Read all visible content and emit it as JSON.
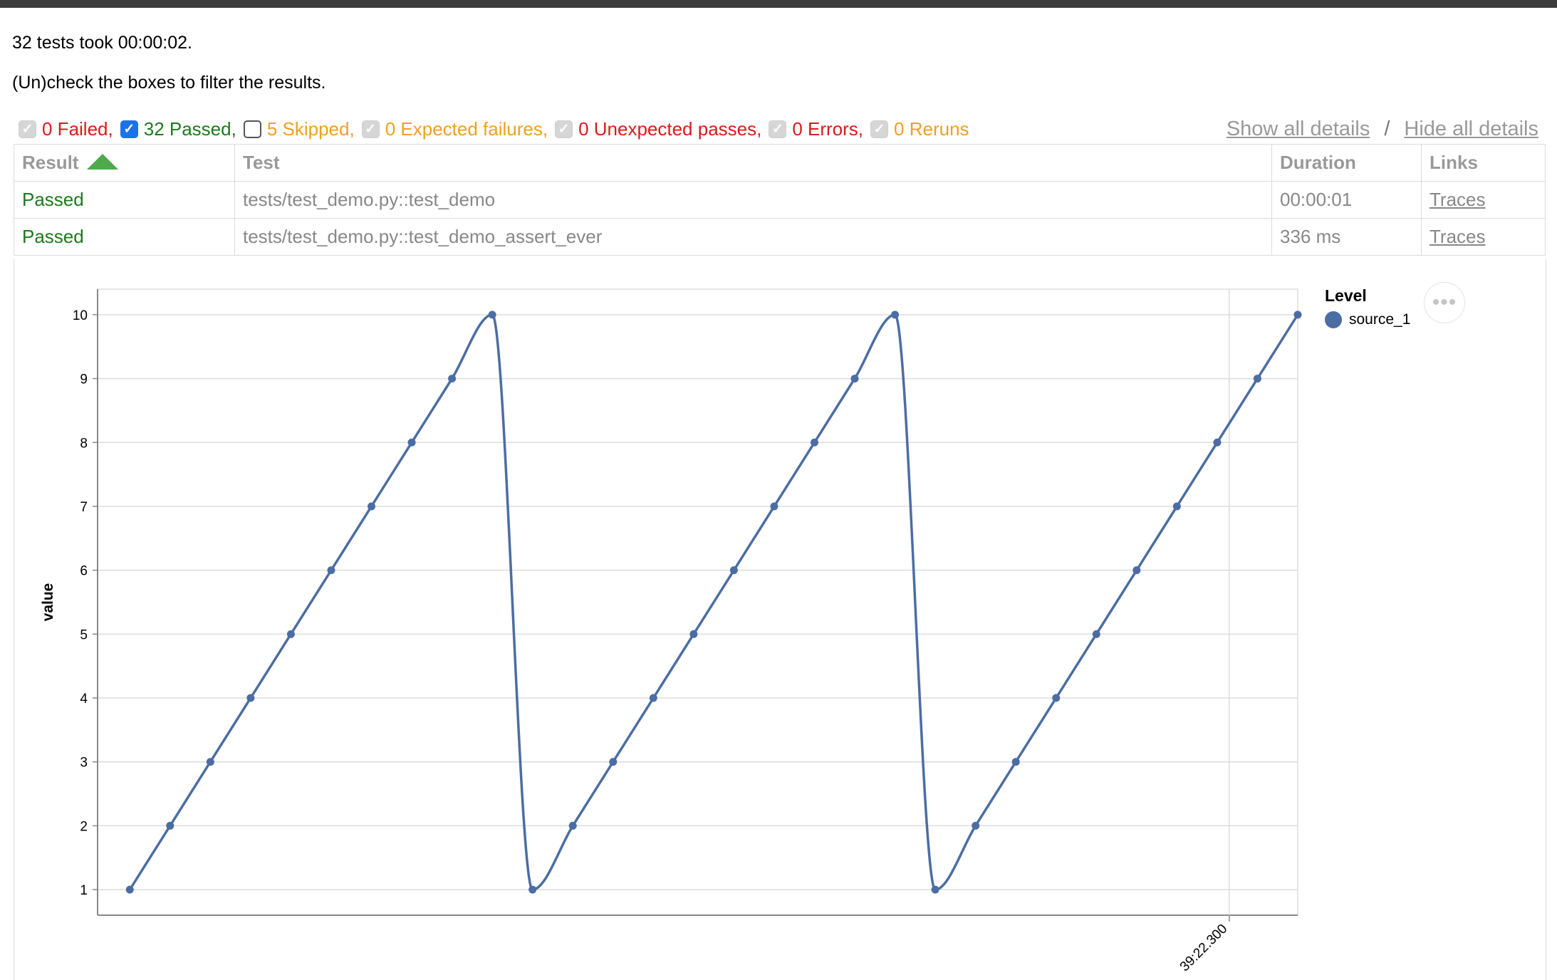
{
  "summary": {
    "tests_line": "32 tests took 00:00:02.",
    "hint_line": "(Un)check the boxes to filter the results."
  },
  "filters": [
    {
      "label": "0 Failed,",
      "state": "disabled",
      "color": "#d81b1b"
    },
    {
      "label": "32 Passed,",
      "state": "checked",
      "color": "#1d7a1d"
    },
    {
      "label": "5 Skipped,",
      "state": "unchecked",
      "color": "#f0a020"
    },
    {
      "label": "0 Expected failures,",
      "state": "disabled",
      "color": "#f0a020"
    },
    {
      "label": "0 Unexpected passes,",
      "state": "disabled",
      "color": "#d81b1b"
    },
    {
      "label": "0 Errors,",
      "state": "disabled",
      "color": "#d81b1b"
    },
    {
      "label": "0 Reruns",
      "state": "disabled",
      "color": "#f0a020"
    }
  ],
  "details": {
    "show_all": "Show all details",
    "separator": "/",
    "hide_all": "Hide all details"
  },
  "table": {
    "headers": {
      "result": "Result",
      "test": "Test",
      "duration": "Duration",
      "links": "Links"
    },
    "sort": {
      "column": "result",
      "direction": "ascending"
    },
    "rows": [
      {
        "result": "Passed",
        "test": "tests/test_demo.py::test_demo",
        "duration": "00:00:01",
        "links": "Traces"
      },
      {
        "result": "Passed",
        "test": "tests/test_demo.py::test_demo_assert_ever",
        "duration": "336 ms",
        "links": "Traces"
      }
    ]
  },
  "legend": {
    "title": "Level",
    "items": [
      {
        "name": "source_1",
        "color": "#4c6da3"
      }
    ]
  },
  "menu_icon": "ellipsis-icon",
  "chart_data": {
    "type": "line",
    "ylabel": "value",
    "xlabel": "",
    "ylim": [
      0.6,
      10.4
    ],
    "yticks": [
      1,
      2,
      3,
      4,
      5,
      6,
      7,
      8,
      9,
      10
    ],
    "xlim": [
      0,
      29.8
    ],
    "xtick": {
      "x": 28.1,
      "label": "39:22.300"
    },
    "grid": true,
    "interpolation": "monotone",
    "series": [
      {
        "name": "source_1",
        "color": "#4c6da3",
        "x": [
          0.8,
          1.8,
          2.8,
          3.8,
          4.8,
          5.8,
          6.8,
          7.8,
          8.8,
          9.8,
          10.8,
          11.8,
          12.8,
          13.8,
          14.8,
          15.8,
          16.8,
          17.8,
          18.8,
          19.8,
          20.8,
          21.8,
          22.8,
          23.8,
          24.8,
          25.8,
          26.8,
          27.8,
          28.8,
          29.8
        ],
        "values": [
          1,
          2,
          3,
          4,
          5,
          6,
          7,
          8,
          9,
          10,
          1,
          2,
          3,
          4,
          5,
          6,
          7,
          8,
          9,
          10,
          1,
          2,
          3,
          4,
          5,
          6,
          7,
          8,
          9,
          10
        ]
      }
    ]
  }
}
